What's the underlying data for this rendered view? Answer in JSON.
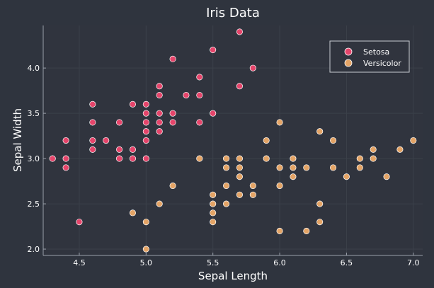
{
  "chart_data": {
    "type": "scatter",
    "title": "Iris Data",
    "xlabel": "Sepal Length",
    "ylabel": "Sepal Width",
    "xlim": [
      4.23,
      7.07
    ],
    "ylim": [
      1.93,
      4.47
    ],
    "xticks": [
      "4.5",
      "5.0",
      "5.5",
      "6.0",
      "6.5",
      "7.0"
    ],
    "yticks": [
      "2.0",
      "2.5",
      "3.0",
      "3.5",
      "4.0"
    ],
    "grid": true,
    "legend_position": "top-right",
    "colors": {
      "background": "#2f343e",
      "plot_background": "#30343e",
      "axis": "#9aa0aa",
      "text": "#ffffff",
      "grid": "#3b404a",
      "setosa": "#e5456b",
      "versicolor": "#e4a466"
    },
    "series": [
      {
        "name": "Setosa",
        "color": "#e5456b",
        "points": [
          [
            4.3,
            3.0
          ],
          [
            4.4,
            2.9
          ],
          [
            4.4,
            3.0
          ],
          [
            4.4,
            3.2
          ],
          [
            4.5,
            2.3
          ],
          [
            4.6,
            3.1
          ],
          [
            4.6,
            3.2
          ],
          [
            4.6,
            3.4
          ],
          [
            4.6,
            3.6
          ],
          [
            4.7,
            3.2
          ],
          [
            4.8,
            3.0
          ],
          [
            4.8,
            3.1
          ],
          [
            4.8,
            3.4
          ],
          [
            4.9,
            3.0
          ],
          [
            4.9,
            3.1
          ],
          [
            4.9,
            3.6
          ],
          [
            5.0,
            3.0
          ],
          [
            5.0,
            3.2
          ],
          [
            5.0,
            3.3
          ],
          [
            5.0,
            3.4
          ],
          [
            5.0,
            3.5
          ],
          [
            5.0,
            3.6
          ],
          [
            5.1,
            3.3
          ],
          [
            5.1,
            3.4
          ],
          [
            5.1,
            3.5
          ],
          [
            5.1,
            3.7
          ],
          [
            5.1,
            3.8
          ],
          [
            5.2,
            3.4
          ],
          [
            5.2,
            3.5
          ],
          [
            5.2,
            4.1
          ],
          [
            5.3,
            3.7
          ],
          [
            5.4,
            3.4
          ],
          [
            5.4,
            3.7
          ],
          [
            5.4,
            3.9
          ],
          [
            5.5,
            3.5
          ],
          [
            5.5,
            4.2
          ],
          [
            5.7,
            3.8
          ],
          [
            5.7,
            4.4
          ],
          [
            5.8,
            4.0
          ]
        ]
      },
      {
        "name": "Versicolor",
        "color": "#e4a466",
        "points": [
          [
            4.9,
            2.4
          ],
          [
            5.0,
            2.0
          ],
          [
            5.0,
            2.3
          ],
          [
            5.1,
            2.5
          ],
          [
            5.2,
            2.7
          ],
          [
            5.4,
            3.0
          ],
          [
            5.5,
            2.3
          ],
          [
            5.5,
            2.4
          ],
          [
            5.5,
            2.5
          ],
          [
            5.5,
            2.6
          ],
          [
            5.6,
            2.5
          ],
          [
            5.6,
            2.7
          ],
          [
            5.6,
            2.9
          ],
          [
            5.6,
            3.0
          ],
          [
            5.7,
            2.6
          ],
          [
            5.7,
            2.8
          ],
          [
            5.7,
            2.9
          ],
          [
            5.7,
            3.0
          ],
          [
            5.8,
            2.6
          ],
          [
            5.8,
            2.7
          ],
          [
            5.9,
            3.0
          ],
          [
            5.9,
            3.2
          ],
          [
            6.0,
            2.2
          ],
          [
            6.0,
            2.7
          ],
          [
            6.0,
            2.9
          ],
          [
            6.0,
            3.4
          ],
          [
            6.1,
            2.8
          ],
          [
            6.1,
            2.9
          ],
          [
            6.1,
            3.0
          ],
          [
            6.2,
            2.2
          ],
          [
            6.2,
            2.9
          ],
          [
            6.3,
            2.3
          ],
          [
            6.3,
            2.5
          ],
          [
            6.3,
            3.3
          ],
          [
            6.4,
            2.9
          ],
          [
            6.4,
            3.2
          ],
          [
            6.5,
            2.8
          ],
          [
            6.6,
            2.9
          ],
          [
            6.6,
            3.0
          ],
          [
            6.7,
            3.0
          ],
          [
            6.7,
            3.1
          ],
          [
            6.8,
            2.8
          ],
          [
            6.9,
            3.1
          ],
          [
            7.0,
            3.2
          ]
        ]
      }
    ]
  }
}
